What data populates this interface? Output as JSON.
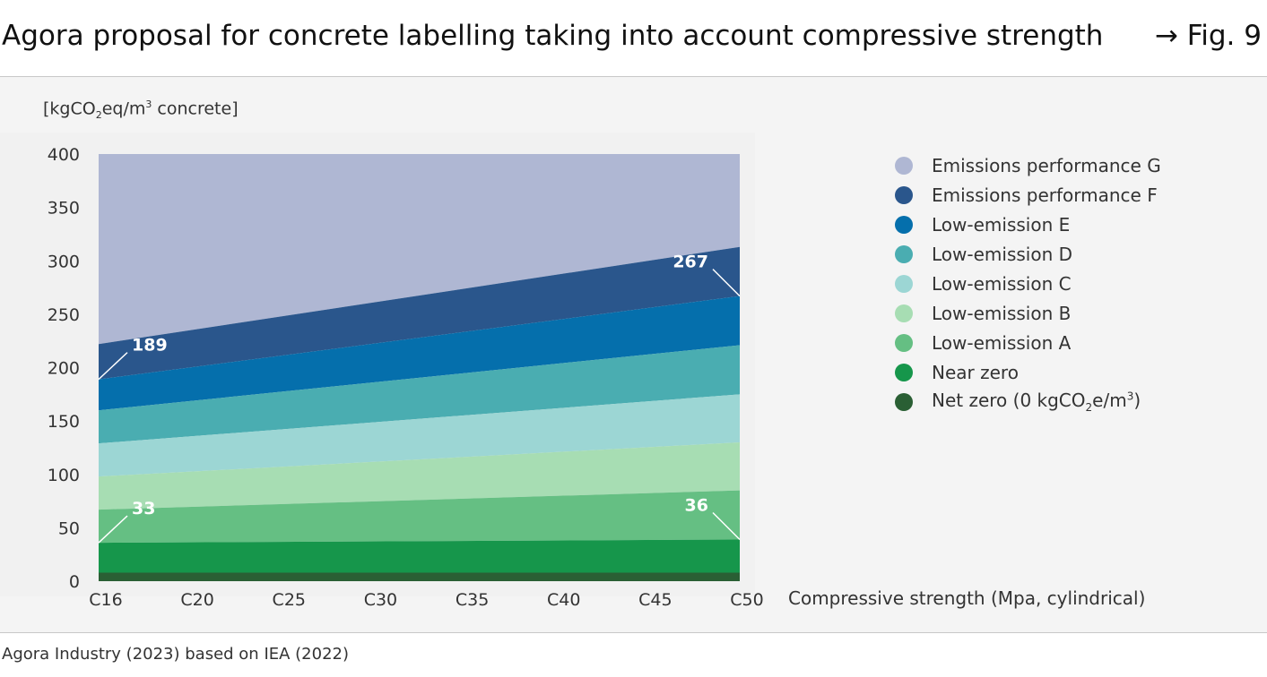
{
  "header": {
    "title": "Agora proposal for concrete labelling taking into account compressive strength",
    "figref": "→ Fig. 9"
  },
  "unit": {
    "pre": "[kgCO",
    "sub": "2",
    "mid": "eq/m",
    "sup": "3",
    "post": " concrete]"
  },
  "source": "Agora Industry (2023) based on IEA (2022)",
  "legend": [
    {
      "label": "Emissions performance G",
      "color": "#afb7d3"
    },
    {
      "label": "Emissions performance F",
      "color": "#2a568c"
    },
    {
      "label": "Low-emission E",
      "color": "#056fac"
    },
    {
      "label": "Low-emission D",
      "color": "#4aadb1"
    },
    {
      "label": "Low-emission C",
      "color": "#9cd6d4"
    },
    {
      "label": "Low-emission B",
      "color": "#a7ddb3"
    },
    {
      "label": "Low-emission A",
      "color": "#65bf83"
    },
    {
      "label": "Near zero",
      "color": "#16964b"
    },
    {
      "label_pre": "Net zero (0 kgCO",
      "label_sub": "2",
      "label_mid": "e/m",
      "label_sup": "3",
      "label_post": ")",
      "color": "#2a5f34"
    }
  ],
  "chart_data": {
    "type": "area",
    "xlabel": "Compressive strength (Mpa, cylindrical)",
    "ylabel": "",
    "categories": [
      "C16",
      "C20",
      "C25",
      "C30",
      "C35",
      "C40",
      "C45",
      "C50"
    ],
    "ylim": [
      0,
      400
    ],
    "yticks": [
      0,
      50,
      100,
      150,
      200,
      250,
      300,
      350,
      400
    ],
    "grid": false,
    "legend_position": "right",
    "stacked_boundaries": [
      {
        "name": "Emissions performance G",
        "start": 400,
        "end": 400
      },
      {
        "name": "Emissions performance F",
        "start": 222,
        "end": 313
      },
      {
        "name": "Low-emission E",
        "start": 189,
        "end": 267
      },
      {
        "name": "Low-emission D",
        "start": 160,
        "end": 221
      },
      {
        "name": "Low-emission C",
        "start": 129,
        "end": 175
      },
      {
        "name": "Low-emission B",
        "start": 98,
        "end": 130
      },
      {
        "name": "Low-emission A",
        "start": 67,
        "end": 85
      },
      {
        "name": "Near zero",
        "start": 36,
        "end": 39
      },
      {
        "name": "Net zero (0 kgCO2e/m3)",
        "start": 8,
        "end": 8
      }
    ],
    "annotations": [
      {
        "text": "189",
        "x": "C16",
        "y": 189
      },
      {
        "text": "33",
        "x": "C16",
        "y": 36
      },
      {
        "text": "267",
        "x": "C50",
        "y": 267
      },
      {
        "text": "36",
        "x": "C50",
        "y": 39
      }
    ]
  }
}
